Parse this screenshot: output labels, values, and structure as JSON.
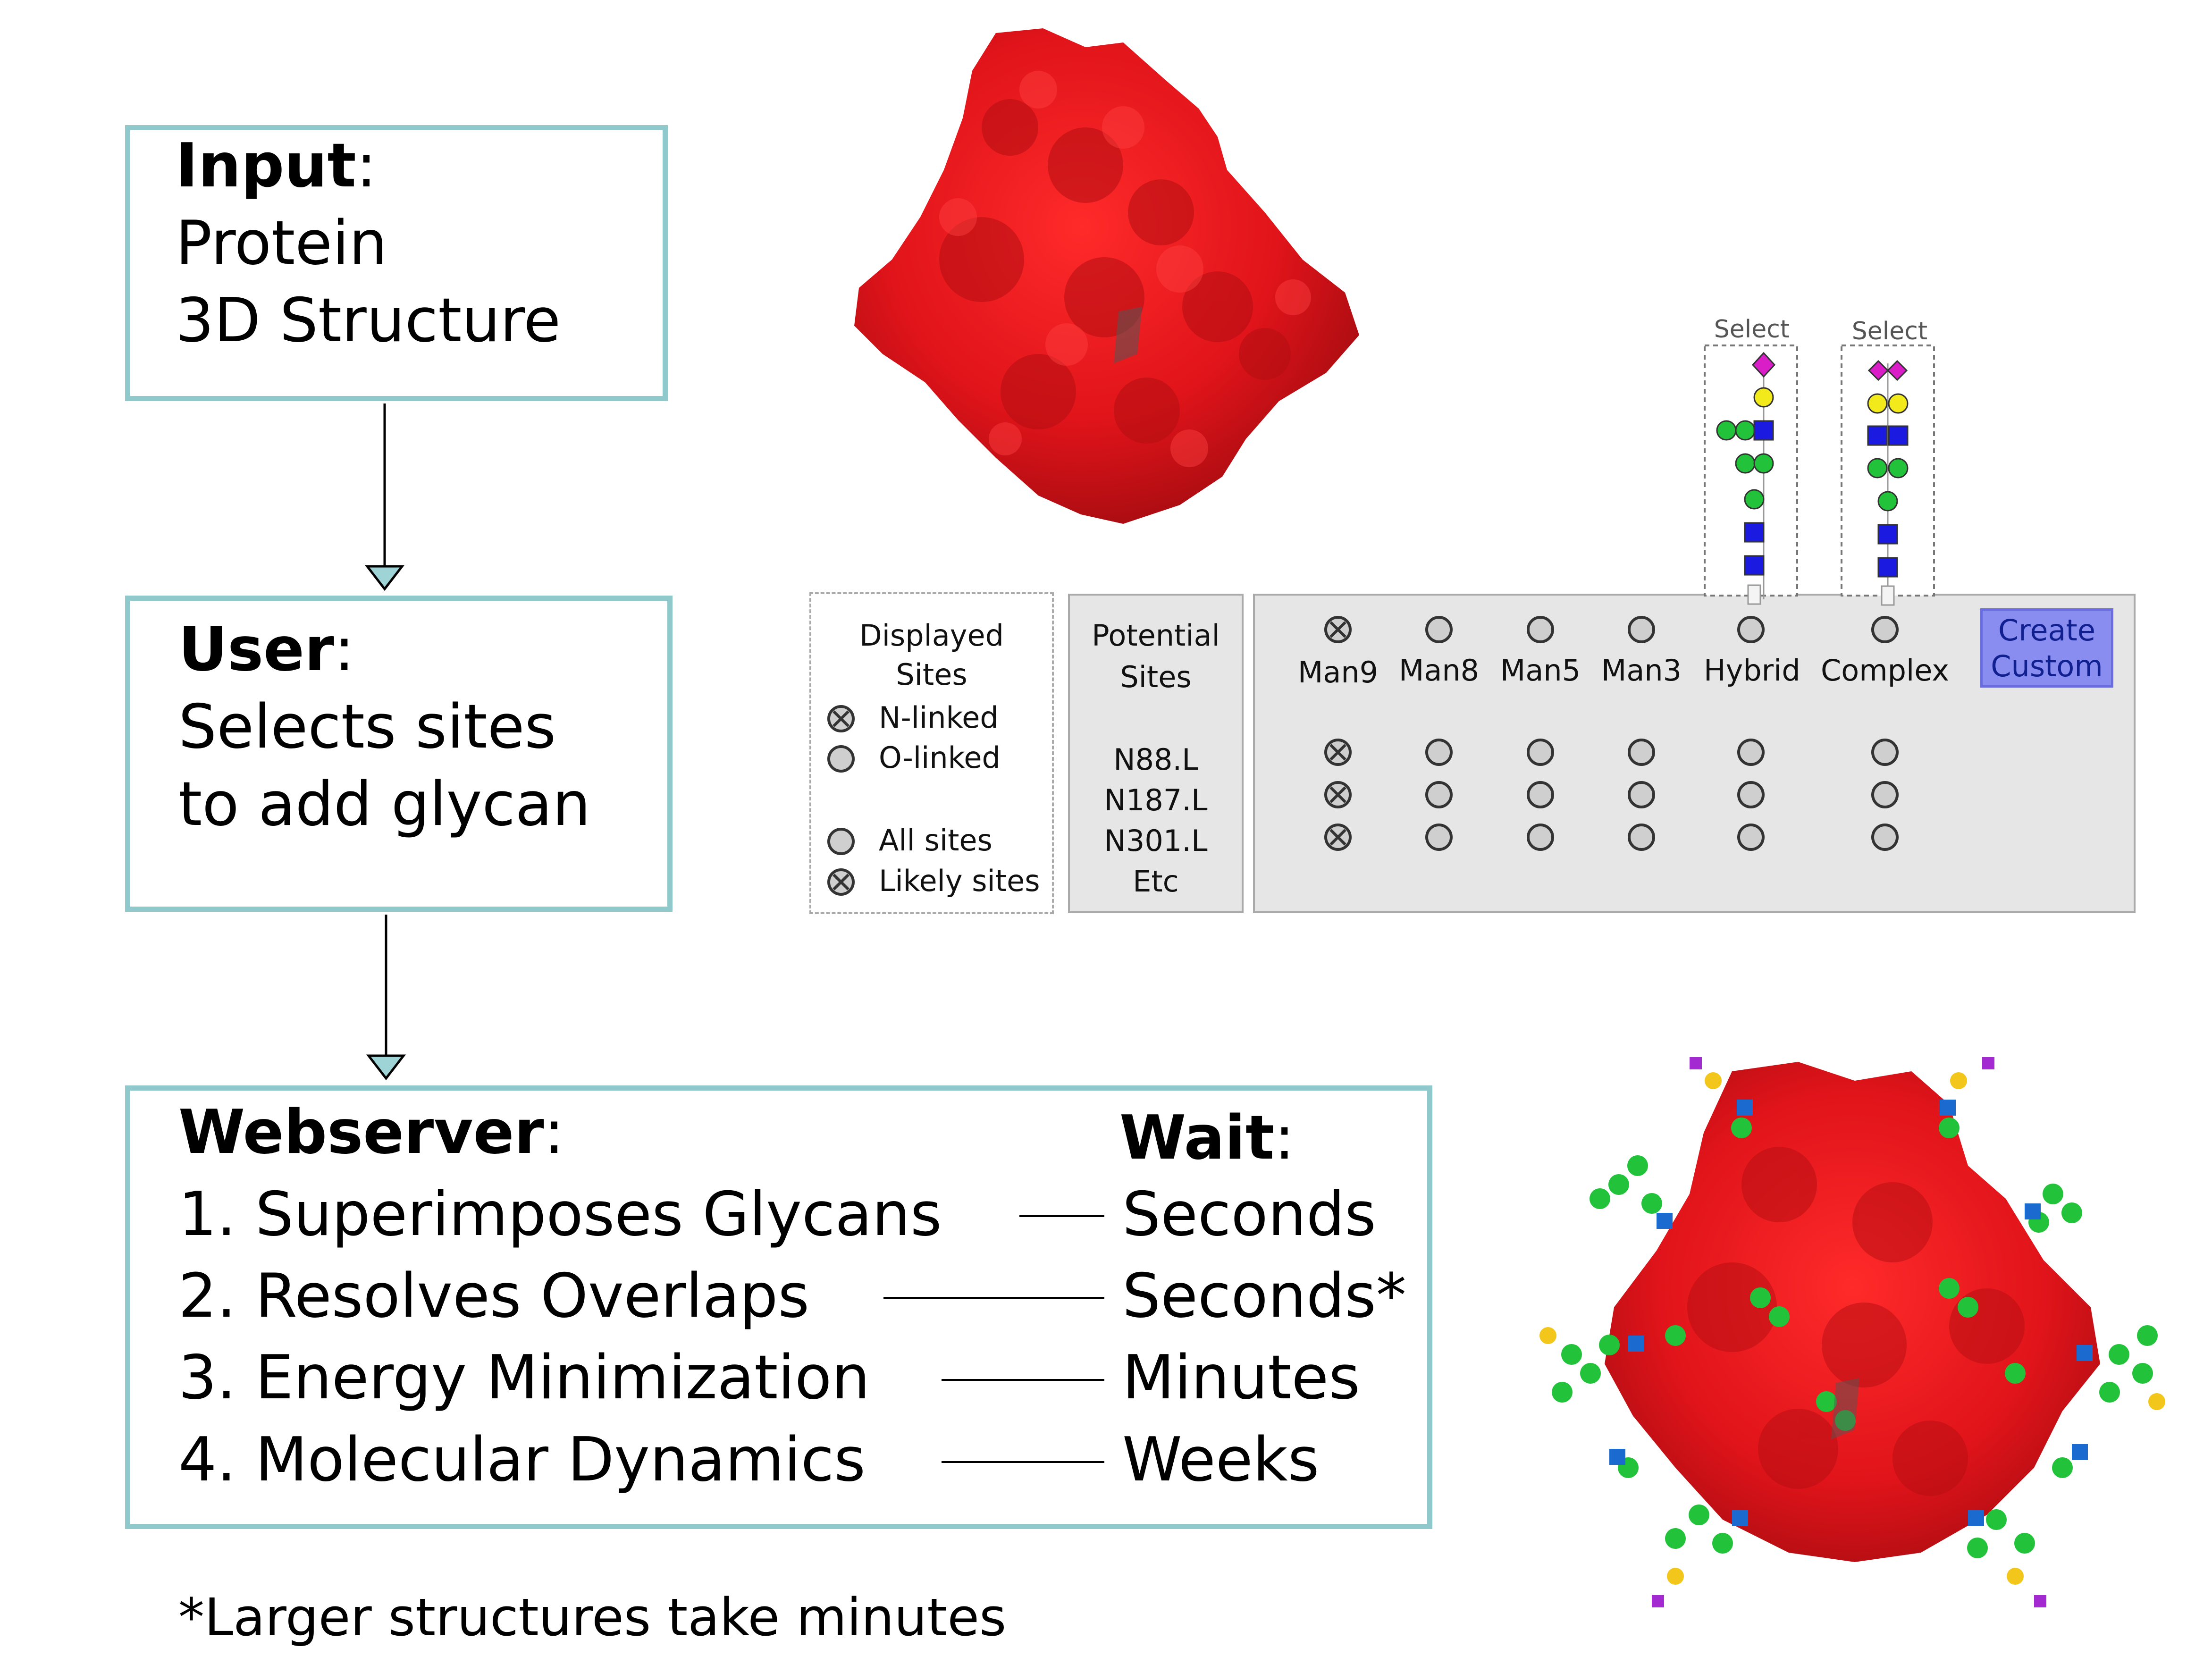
{
  "flow": {
    "input": {
      "label": "Input",
      "colon": ":",
      "line1": "Protein",
      "line2": "3D Structure"
    },
    "user": {
      "label": "User",
      "colon": ":",
      "line1": "Selects sites",
      "line2": "to add glycan"
    },
    "webserver": {
      "label": "Webserver",
      "colon": ":",
      "wait_label": "Wait",
      "wait_colon": ":",
      "steps": [
        {
          "text": "1. Superimposes Glycans",
          "time": "Seconds"
        },
        {
          "text": "2. Resolves Overlaps",
          "time": "Seconds*"
        },
        {
          "text": "3. Energy Minimization",
          "time": "Minutes"
        },
        {
          "text": "4. Molecular Dynamics",
          "time": "Weeks"
        }
      ]
    },
    "footnote": "*Larger structures take minutes"
  },
  "ui": {
    "displayed_sites": {
      "title_line1": "Displayed",
      "title_line2": "Sites",
      "options": [
        "N-linked",
        "O-linked",
        "All sites",
        "Likely sites"
      ]
    },
    "potential_sites": {
      "title_line1": "Potential",
      "title_line2": "Sites",
      "sites": [
        "N88.L",
        "N187.L",
        "N301.L",
        "Etc"
      ]
    },
    "glycan_columns": [
      "Man9",
      "Man8",
      "Man5",
      "Man3",
      "Hybrid",
      "Complex"
    ],
    "select_label": "Select",
    "create_button": {
      "line1": "Create",
      "line2": "Custom"
    }
  },
  "colors": {
    "box_border": "#8fc9cb",
    "protein": "#e0141a",
    "glycan_green": "#22c33a",
    "glycan_blue": "#1a1ae0",
    "glycan_yellow": "#f2ea1a",
    "glycan_magenta": "#d91ec8",
    "button_fill": "#8a8df0",
    "panel_bg": "#e6e6e6"
  }
}
